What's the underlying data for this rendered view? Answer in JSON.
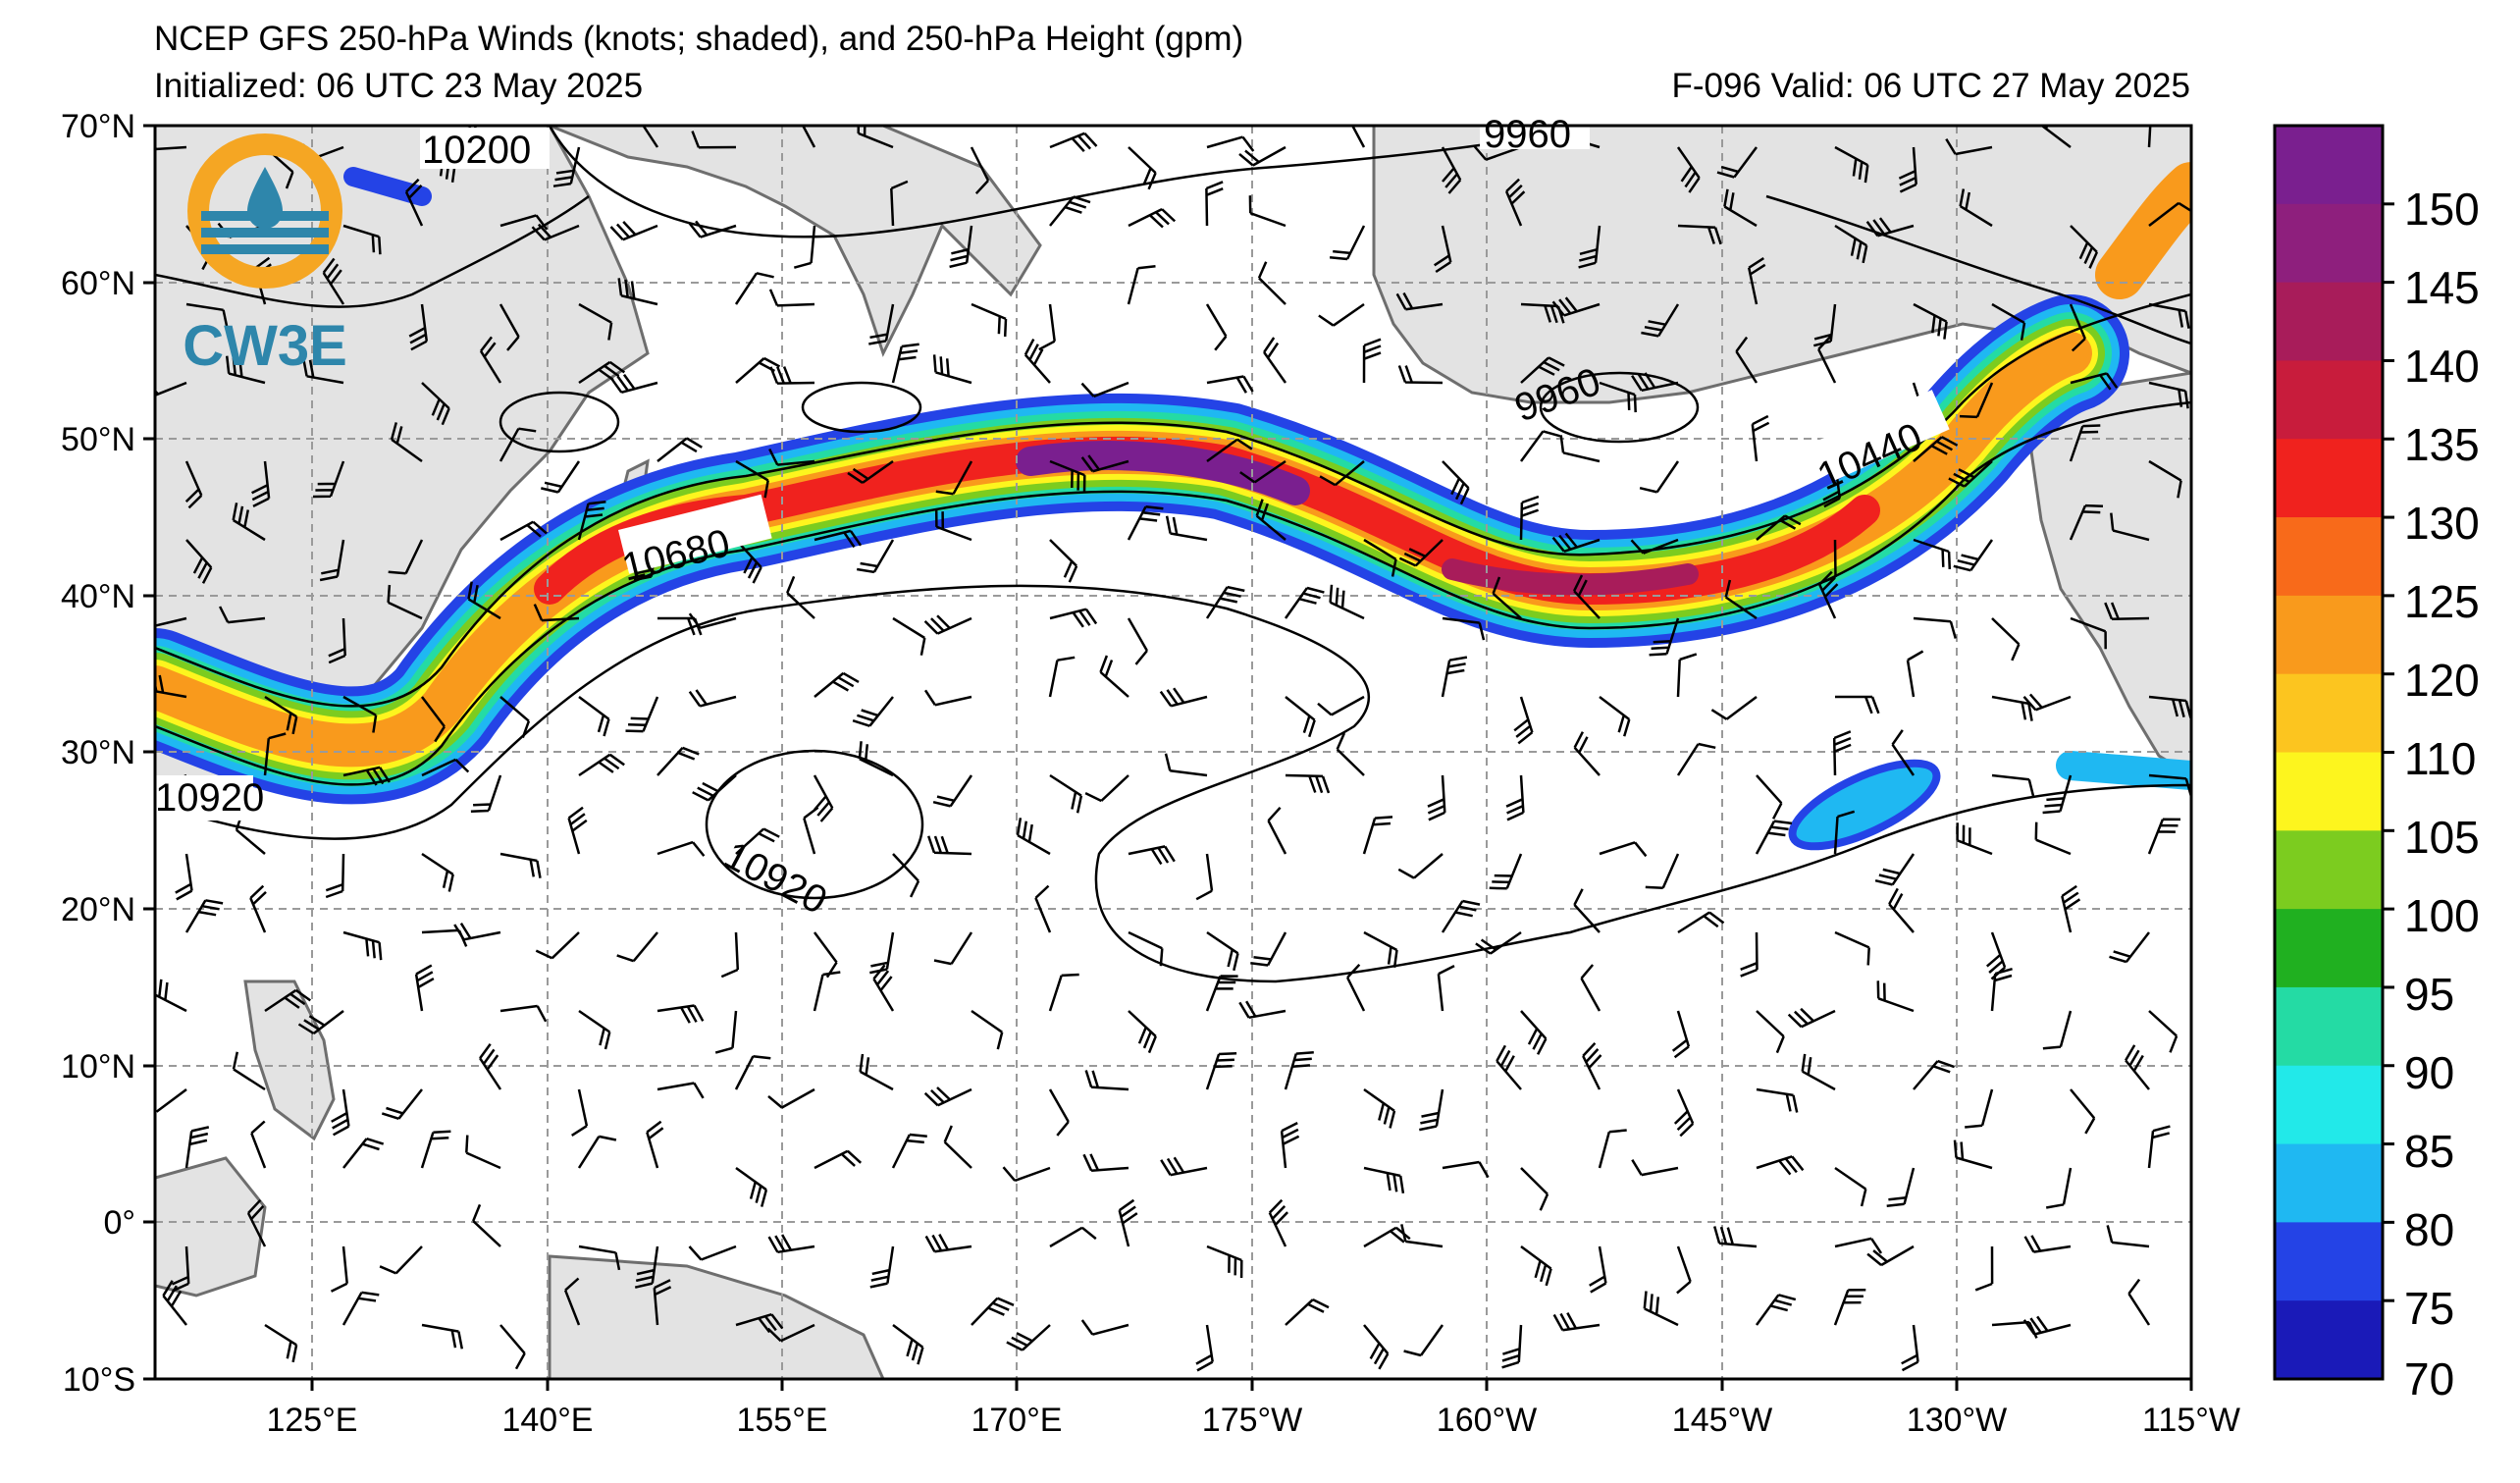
{
  "header": {
    "title": "NCEP GFS 250-hPa Winds (knots; shaded), and 250-hPa Height (gpm)",
    "initialized": "Initialized: 06 UTC 23 May 2025",
    "valid": "F-096  Valid: 06 UTC 27 May 2025"
  },
  "logo": {
    "text": "CW3E",
    "ring_color": "#f5a623",
    "drop_color": "#2e86ab"
  },
  "map": {
    "lat_labels": [
      "70°N",
      "60°N",
      "50°N",
      "40°N",
      "30°N",
      "20°N",
      "10°N",
      "0°",
      "10°S"
    ],
    "lon_labels": [
      "125°E",
      "140°E",
      "155°E",
      "170°E",
      "175°W",
      "160°W",
      "145°W",
      "130°W",
      "115°W"
    ],
    "contour_labels": [
      {
        "text": "10200"
      },
      {
        "text": "9960"
      },
      {
        "text": "9960"
      },
      {
        "text": "10680"
      },
      {
        "text": "10440"
      },
      {
        "text": "10920"
      },
      {
        "text": "10920"
      }
    ]
  },
  "colorbar": {
    "labels": [
      "150",
      "145",
      "140",
      "135",
      "130",
      "125",
      "120",
      "110",
      "105",
      "100",
      "95",
      "90",
      "85",
      "80",
      "75",
      "70"
    ],
    "colors": [
      "#7a1f8f",
      "#8e1f7d",
      "#a81c5a",
      "#c81c3c",
      "#f0221e",
      "#f86a1a",
      "#f99a1c",
      "#fcc51f",
      "#fdf51e",
      "#7ccc1f",
      "#20b020",
      "#24dba4",
      "#22e9e9",
      "#1fb8f2",
      "#2443e6",
      "#1a1ab8"
    ]
  }
}
